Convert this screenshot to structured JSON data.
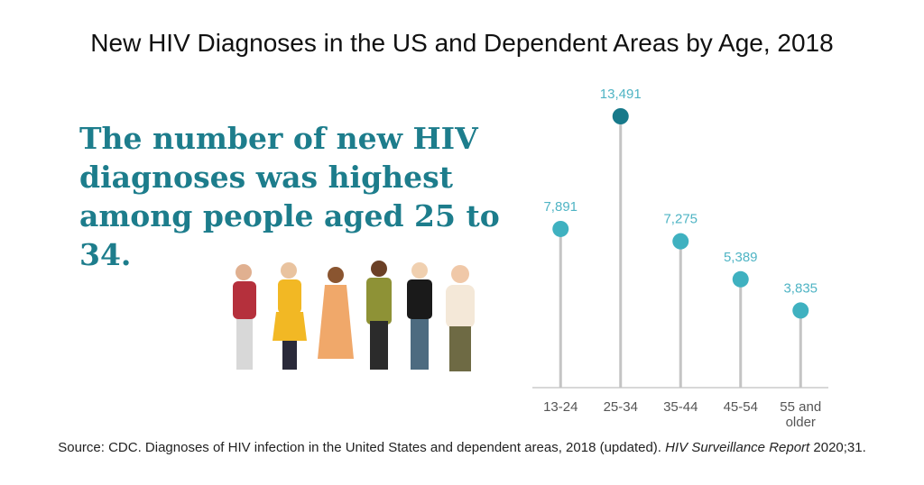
{
  "chart_data": {
    "type": "lollipop",
    "title": "New HIV Diagnoses in the US and Dependent Areas by Age, 2018",
    "headline": "The number of new HIV diagnoses was highest among people aged 25 to 34.",
    "categories": [
      "13-24",
      "25-34",
      "35-44",
      "45-54",
      "55 and older"
    ],
    "values": [
      7891,
      13491,
      7275,
      5389,
      3835
    ],
    "value_labels": [
      "7,891",
      "13,491",
      "7,275",
      "5,389",
      "3,835"
    ],
    "colors": [
      "#3fb1c0",
      "#17798a",
      "#3fb1c0",
      "#3fb1c0",
      "#3fb1c0"
    ],
    "source": [
      "Source: CDC. Diagnoses of HIV infection in the United States and dependent areas, 2018 (updated). ",
      "HIV Surveillance Report",
      " 2020;31."
    ]
  }
}
